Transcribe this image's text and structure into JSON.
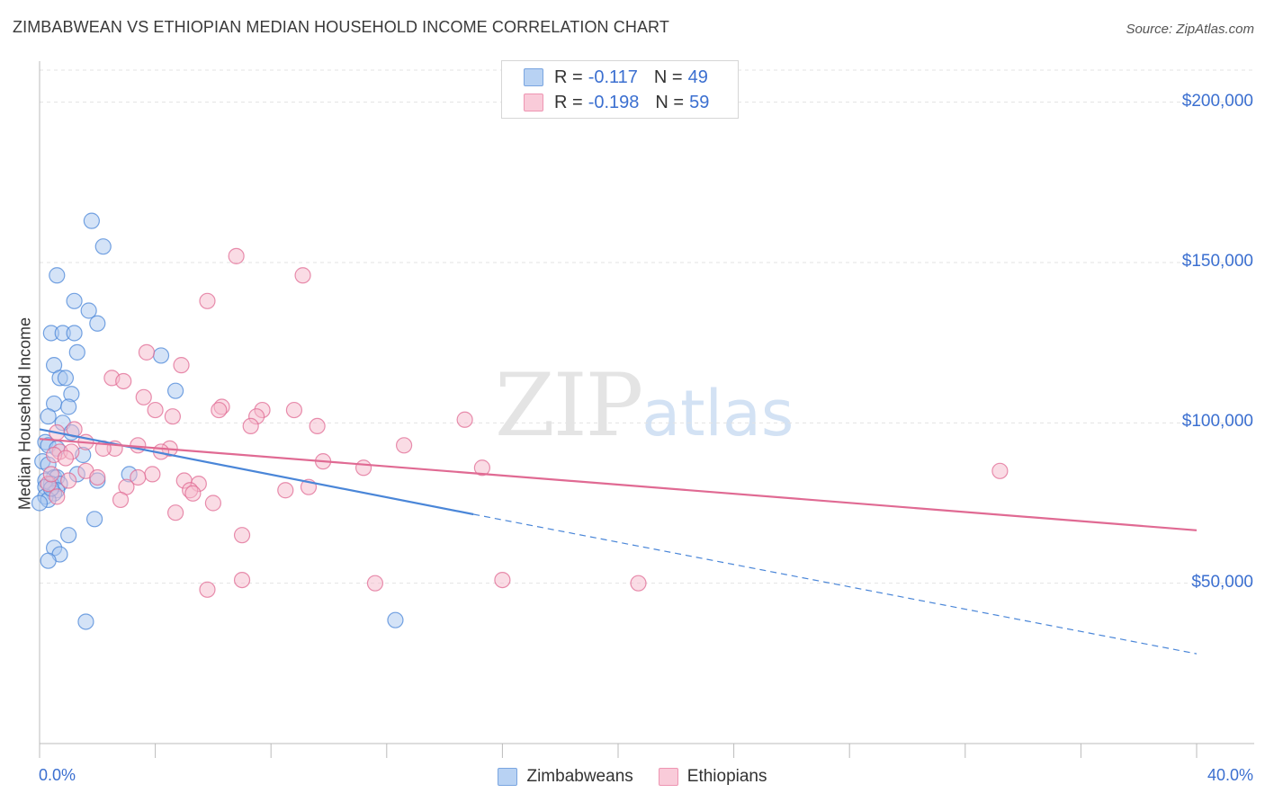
{
  "header": {
    "title": "ZIMBABWEAN VS ETHIOPIAN MEDIAN HOUSEHOLD INCOME CORRELATION CHART",
    "source": "Source: ZipAtlas.com"
  },
  "watermark": {
    "zip": "ZIP",
    "atlas": "atlas"
  },
  "legend": {
    "rows": [
      {
        "r_label": "R =",
        "r_value": "-0.117",
        "n_label": "N =",
        "n_value": "49",
        "color": "#a9c8f0"
      },
      {
        "r_label": "R =",
        "r_value": "-0.198",
        "n_label": "N =",
        "n_value": "59",
        "color": "#f6b9cc"
      }
    ]
  },
  "bottom_legend": {
    "items": [
      {
        "label": "Zimbabweans",
        "color": "#a9c8f0"
      },
      {
        "label": "Ethiopians",
        "color": "#f6b9cc"
      }
    ]
  },
  "chart_data": {
    "type": "scatter",
    "title": "ZIMBABWEAN VS ETHIOPIAN MEDIAN HOUSEHOLD INCOME CORRELATION CHART",
    "xlabel": "",
    "ylabel": "Median Household Income",
    "xlim": [
      0,
      40
    ],
    "ylim": [
      0,
      210000
    ],
    "x_tick_labels": [
      "0.0%",
      "40.0%"
    ],
    "y_ticks": [
      50000,
      100000,
      150000,
      200000
    ],
    "y_tick_labels": [
      "$50,000",
      "$100,000",
      "$150,000",
      "$200,000"
    ],
    "grid": "horizontal dashed",
    "legend_position": "top-center",
    "series": [
      {
        "name": "Zimbabweans",
        "color": "#4a86d8",
        "fill": "#a9c8f0",
        "trend": {
          "x": [
            0,
            15.0
          ],
          "y": [
            98000,
            71500
          ],
          "dashed_to": [
            40,
            28000
          ]
        },
        "points": [
          [
            1.8,
            163000
          ],
          [
            2.2,
            155000
          ],
          [
            0.6,
            146000
          ],
          [
            1.2,
            138000
          ],
          [
            1.7,
            135000
          ],
          [
            2.0,
            131000
          ],
          [
            0.4,
            128000
          ],
          [
            0.8,
            128000
          ],
          [
            1.2,
            128000
          ],
          [
            1.3,
            122000
          ],
          [
            4.2,
            121000
          ],
          [
            0.5,
            118000
          ],
          [
            0.7,
            114000
          ],
          [
            0.9,
            114000
          ],
          [
            4.7,
            110000
          ],
          [
            1.1,
            109000
          ],
          [
            0.5,
            106000
          ],
          [
            1.0,
            105000
          ],
          [
            0.3,
            102000
          ],
          [
            0.8,
            100000
          ],
          [
            1.1,
            97000
          ],
          [
            0.2,
            94000
          ],
          [
            0.3,
            93000
          ],
          [
            0.6,
            92000
          ],
          [
            1.5,
            90000
          ],
          [
            0.1,
            88000
          ],
          [
            0.3,
            87000
          ],
          [
            3.1,
            84000
          ],
          [
            1.3,
            84000
          ],
          [
            0.5,
            83000
          ],
          [
            0.6,
            83000
          ],
          [
            0.2,
            82000
          ],
          [
            2.0,
            82000
          ],
          [
            0.4,
            81000
          ],
          [
            0.7,
            81000
          ],
          [
            0.2,
            80000
          ],
          [
            0.6,
            79000
          ],
          [
            0.5,
            78000
          ],
          [
            0.2,
            77000
          ],
          [
            0.3,
            76000
          ],
          [
            0.0,
            75000
          ],
          [
            1.9,
            70000
          ],
          [
            1.0,
            65000
          ],
          [
            0.5,
            61000
          ],
          [
            0.7,
            59000
          ],
          [
            0.3,
            57000
          ],
          [
            1.6,
            38000
          ],
          [
            12.3,
            38500
          ],
          [
            0.4,
            79500
          ]
        ]
      },
      {
        "name": "Ethiopians",
        "color": "#e06a93",
        "fill": "#f6b9cc",
        "trend": {
          "x": [
            0,
            40
          ],
          "y": [
            95000,
            66500
          ]
        },
        "points": [
          [
            6.8,
            152000
          ],
          [
            9.1,
            146000
          ],
          [
            5.8,
            138000
          ],
          [
            3.7,
            122000
          ],
          [
            4.9,
            118000
          ],
          [
            2.5,
            114000
          ],
          [
            2.9,
            113000
          ],
          [
            3.6,
            108000
          ],
          [
            6.3,
            105000
          ],
          [
            6.2,
            104000
          ],
          [
            4.0,
            104000
          ],
          [
            7.7,
            104000
          ],
          [
            8.8,
            104000
          ],
          [
            14.7,
            101000
          ],
          [
            4.6,
            102000
          ],
          [
            7.5,
            102000
          ],
          [
            7.3,
            99000
          ],
          [
            9.6,
            99000
          ],
          [
            1.2,
            98000
          ],
          [
            0.6,
            97000
          ],
          [
            12.6,
            93000
          ],
          [
            3.4,
            93000
          ],
          [
            1.6,
            94000
          ],
          [
            2.6,
            92000
          ],
          [
            4.5,
            92000
          ],
          [
            2.2,
            92000
          ],
          [
            0.7,
            91000
          ],
          [
            1.1,
            91000
          ],
          [
            0.5,
            90000
          ],
          [
            4.2,
            91000
          ],
          [
            0.9,
            89000
          ],
          [
            9.8,
            88000
          ],
          [
            11.2,
            86000
          ],
          [
            15.3,
            86000
          ],
          [
            33.2,
            85000
          ],
          [
            1.6,
            85000
          ],
          [
            3.9,
            84000
          ],
          [
            2.0,
            83000
          ],
          [
            3.4,
            83000
          ],
          [
            5.0,
            82000
          ],
          [
            5.5,
            81000
          ],
          [
            1.0,
            82000
          ],
          [
            0.3,
            81000
          ],
          [
            3.0,
            80000
          ],
          [
            9.3,
            80000
          ],
          [
            8.5,
            79000
          ],
          [
            5.2,
            79000
          ],
          [
            5.3,
            78000
          ],
          [
            0.6,
            77000
          ],
          [
            2.8,
            76000
          ],
          [
            6.0,
            75000
          ],
          [
            4.7,
            72000
          ],
          [
            7.0,
            65000
          ],
          [
            0.4,
            84000
          ],
          [
            7.0,
            51000
          ],
          [
            11.6,
            50000
          ],
          [
            16.0,
            51000
          ],
          [
            20.7,
            50000
          ],
          [
            5.8,
            48000
          ]
        ]
      }
    ]
  }
}
